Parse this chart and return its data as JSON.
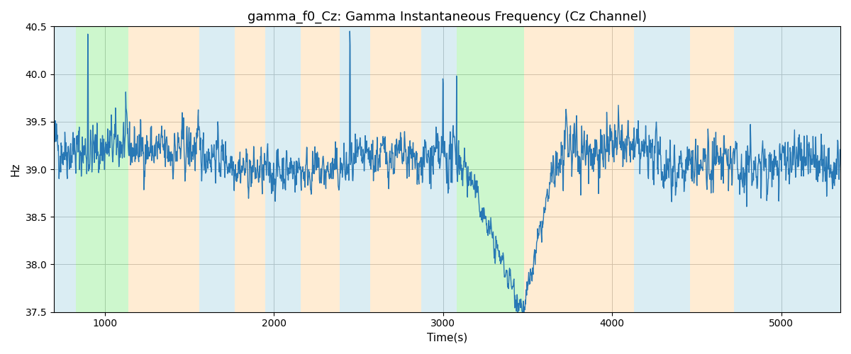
{
  "title": "gamma_f0_Cz: Gamma Instantaneous Frequency (Cz Channel)",
  "xlabel": "Time(s)",
  "ylabel": "Hz",
  "xlim": [
    700,
    5350
  ],
  "ylim": [
    37.5,
    40.5
  ],
  "xticks": [
    1000,
    2000,
    3000,
    4000,
    5000
  ],
  "yticks": [
    37.5,
    38.0,
    38.5,
    39.0,
    39.5,
    40.0,
    40.5
  ],
  "line_color": "#2878b5",
  "line_width": 1.0,
  "background_color": "#ffffff",
  "grid_color": "#b0b0b0",
  "bands": [
    {
      "xmin": 700,
      "xmax": 830,
      "color": "#add8e6",
      "alpha": 0.45
    },
    {
      "xmin": 830,
      "xmax": 1140,
      "color": "#90ee90",
      "alpha": 0.45
    },
    {
      "xmin": 1140,
      "xmax": 1560,
      "color": "#ffd59e",
      "alpha": 0.45
    },
    {
      "xmin": 1560,
      "xmax": 1770,
      "color": "#add8e6",
      "alpha": 0.45
    },
    {
      "xmin": 1770,
      "xmax": 1950,
      "color": "#ffd59e",
      "alpha": 0.45
    },
    {
      "xmin": 1950,
      "xmax": 2160,
      "color": "#add8e6",
      "alpha": 0.45
    },
    {
      "xmin": 2160,
      "xmax": 2390,
      "color": "#ffd59e",
      "alpha": 0.45
    },
    {
      "xmin": 2390,
      "xmax": 2570,
      "color": "#add8e6",
      "alpha": 0.45
    },
    {
      "xmin": 2570,
      "xmax": 2870,
      "color": "#ffd59e",
      "alpha": 0.45
    },
    {
      "xmin": 2870,
      "xmax": 3080,
      "color": "#add8e6",
      "alpha": 0.45
    },
    {
      "xmin": 3080,
      "xmax": 3480,
      "color": "#90ee90",
      "alpha": 0.45
    },
    {
      "xmin": 3480,
      "xmax": 3700,
      "color": "#ffd59e",
      "alpha": 0.45
    },
    {
      "xmin": 3700,
      "xmax": 4130,
      "color": "#ffd59e",
      "alpha": 0.45
    },
    {
      "xmin": 4130,
      "xmax": 4460,
      "color": "#add8e6",
      "alpha": 0.45
    },
    {
      "xmin": 4460,
      "xmax": 4720,
      "color": "#ffd59e",
      "alpha": 0.45
    },
    {
      "xmin": 4720,
      "xmax": 5350,
      "color": "#add8e6",
      "alpha": 0.45
    }
  ],
  "seed": 42,
  "n_points": 2300,
  "t_start": 700,
  "t_end": 5350,
  "base_freq": 39.1
}
